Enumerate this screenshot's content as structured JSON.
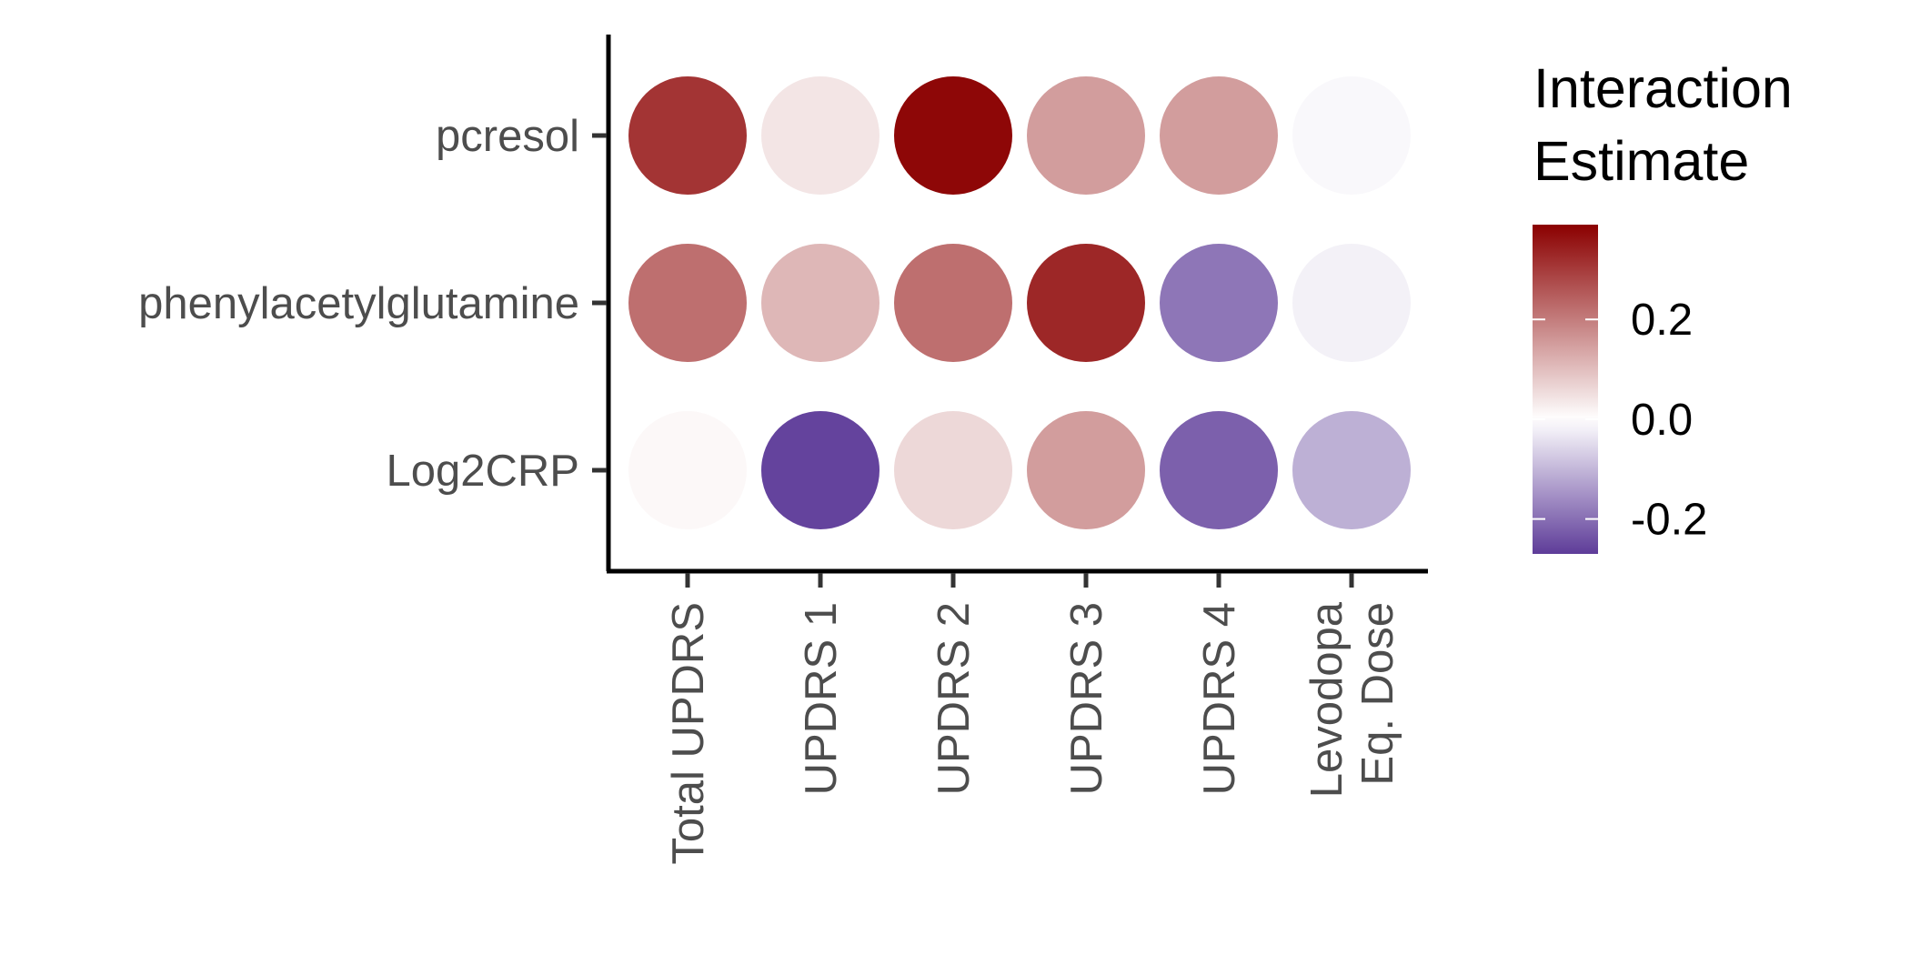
{
  "chart_data": {
    "type": "heatmap",
    "rows": [
      "pcresol",
      "phenylacetylglutamine",
      "Log2CRP"
    ],
    "columns": [
      [
        "Total UPDRS"
      ],
      [
        "UPDRS 1"
      ],
      [
        "UPDRS 2"
      ],
      [
        "UPDRS 3"
      ],
      [
        "UPDRS 4"
      ],
      [
        "Levodopa",
        "Eq. Dose"
      ]
    ],
    "values": [
      [
        0.31,
        0.04,
        0.38,
        0.15,
        0.15,
        -0.01
      ],
      [
        0.22,
        0.11,
        0.22,
        0.33,
        -0.19,
        -0.02
      ],
      [
        0.01,
        -0.26,
        0.06,
        0.15,
        -0.22,
        -0.11
      ]
    ],
    "legend": {
      "title": [
        "Interaction",
        "Estimate"
      ],
      "ticks": [
        0.2,
        0.0,
        -0.2
      ],
      "tick_labels": [
        "0.2",
        "0.0",
        "-0.2"
      ],
      "range": [
        -0.27,
        0.39
      ],
      "placement": "right"
    },
    "colors": {
      "low": "#5e3c99",
      "mid": "#ffffff",
      "high": "#8b0000"
    },
    "grid": false,
    "xlabel": "",
    "ylabel": ""
  }
}
